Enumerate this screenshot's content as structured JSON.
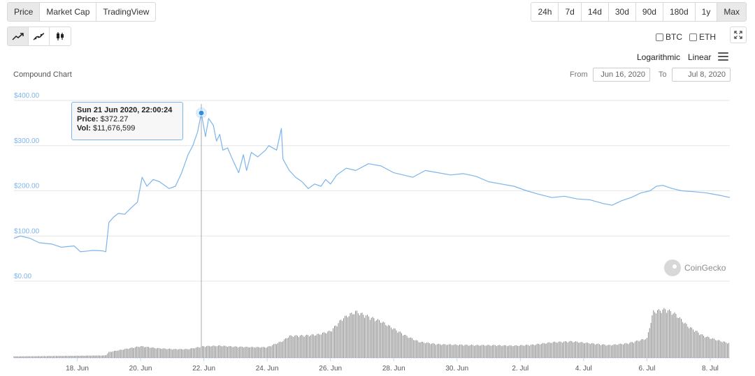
{
  "tabs": [
    {
      "label": "Price",
      "active": true
    },
    {
      "label": "Market Cap",
      "active": false
    },
    {
      "label": "TradingView",
      "active": false
    }
  ],
  "ranges": [
    {
      "label": "24h",
      "active": false
    },
    {
      "label": "7d",
      "active": false
    },
    {
      "label": "14d",
      "active": false
    },
    {
      "label": "30d",
      "active": false
    },
    {
      "label": "90d",
      "active": false
    },
    {
      "label": "180d",
      "active": false
    },
    {
      "label": "1y",
      "active": false
    },
    {
      "label": "Max",
      "active": true
    }
  ],
  "chart_types": [
    "line-chart-icon",
    "smooth-line-chart-icon",
    "candlestick-chart-icon"
  ],
  "compare": {
    "btc": "BTC",
    "eth": "ETH"
  },
  "scale": {
    "logarithmic": "Logarithmic",
    "linear": "Linear"
  },
  "chart_title": "Compound Chart",
  "date_range": {
    "from_label": "From",
    "from": "Jun 16, 2020",
    "to_label": "To",
    "to": "Jul 8, 2020"
  },
  "tooltip": {
    "date": "Sun 21 Jun 2020, 22:00:24",
    "price_label": "Price:",
    "price": "$372.27",
    "vol_label": "Vol:",
    "vol": "$11,676,599"
  },
  "watermark": "CoinGecko",
  "colors": {
    "line": "#7cb5ec",
    "axis_label": "#7cb5ec",
    "volume": "#6b6b6b",
    "grid": "#e6e6e6"
  },
  "chart_data": {
    "type": "line",
    "title": "Compound Chart",
    "y_ticks": [
      "$0.00",
      "$100.00",
      "$200.00",
      "$300.00",
      "$400.00"
    ],
    "ylim": [
      0,
      400
    ],
    "x_ticks": [
      "18. Jun",
      "20. Jun",
      "22. Jun",
      "24. Jun",
      "26. Jun",
      "28. Jun",
      "30. Jun",
      "2. Jul",
      "4. Jul",
      "6. Jul",
      "8. Jul"
    ],
    "x_range_days": [
      16.0,
      38.62
    ],
    "grid": true,
    "highlight": {
      "day": 21.92,
      "price": 372.27
    },
    "series": [
      {
        "values": [
          [
            16.0,
            95
          ],
          [
            16.2,
            100
          ],
          [
            16.5,
            95
          ],
          [
            16.8,
            85
          ],
          [
            17.2,
            82
          ],
          [
            17.5,
            75
          ],
          [
            17.9,
            78
          ],
          [
            18.1,
            65
          ],
          [
            18.5,
            68
          ],
          [
            18.8,
            67
          ],
          [
            18.9,
            65
          ],
          [
            19.0,
            130
          ],
          [
            19.15,
            142
          ],
          [
            19.3,
            150
          ],
          [
            19.5,
            148
          ],
          [
            19.7,
            162
          ],
          [
            19.9,
            175
          ],
          [
            20.05,
            230
          ],
          [
            20.2,
            210
          ],
          [
            20.4,
            225
          ],
          [
            20.6,
            220
          ],
          [
            20.9,
            205
          ],
          [
            21.1,
            210
          ],
          [
            21.3,
            240
          ],
          [
            21.5,
            280
          ],
          [
            21.65,
            300
          ],
          [
            21.8,
            330
          ],
          [
            21.92,
            372
          ],
          [
            22.05,
            320
          ],
          [
            22.15,
            360
          ],
          [
            22.3,
            345
          ],
          [
            22.4,
            310
          ],
          [
            22.5,
            325
          ],
          [
            22.6,
            290
          ],
          [
            22.75,
            295
          ],
          [
            22.9,
            270
          ],
          [
            23.1,
            240
          ],
          [
            23.25,
            280
          ],
          [
            23.35,
            245
          ],
          [
            23.5,
            285
          ],
          [
            23.7,
            275
          ],
          [
            23.95,
            290
          ],
          [
            24.05,
            300
          ],
          [
            24.3,
            290
          ],
          [
            24.45,
            338
          ],
          [
            24.5,
            270
          ],
          [
            24.7,
            245
          ],
          [
            24.9,
            230
          ],
          [
            25.1,
            220
          ],
          [
            25.3,
            205
          ],
          [
            25.5,
            215
          ],
          [
            25.7,
            210
          ],
          [
            25.85,
            225
          ],
          [
            26.0,
            215
          ],
          [
            26.2,
            235
          ],
          [
            26.5,
            250
          ],
          [
            26.8,
            245
          ],
          [
            27.2,
            260
          ],
          [
            27.6,
            255
          ],
          [
            28.0,
            240
          ],
          [
            28.3,
            235
          ],
          [
            28.6,
            230
          ],
          [
            29.0,
            245
          ],
          [
            29.4,
            240
          ],
          [
            29.8,
            235
          ],
          [
            30.2,
            238
          ],
          [
            30.6,
            232
          ],
          [
            31.0,
            220
          ],
          [
            31.4,
            215
          ],
          [
            31.8,
            210
          ],
          [
            32.2,
            200
          ],
          [
            32.6,
            192
          ],
          [
            33.0,
            185
          ],
          [
            33.4,
            188
          ],
          [
            33.8,
            182
          ],
          [
            34.2,
            180
          ],
          [
            34.6,
            172
          ],
          [
            34.9,
            168
          ],
          [
            35.2,
            178
          ],
          [
            35.5,
            185
          ],
          [
            35.8,
            195
          ],
          [
            36.1,
            200
          ],
          [
            36.3,
            210
          ],
          [
            36.5,
            212
          ],
          [
            36.8,
            205
          ],
          [
            37.1,
            200
          ],
          [
            37.5,
            198
          ],
          [
            37.9,
            195
          ],
          [
            38.3,
            190
          ],
          [
            38.62,
            185
          ]
        ]
      }
    ],
    "volume_series": [
      [
        16.0,
        0.03
      ],
      [
        18.9,
        0.05
      ],
      [
        19.0,
        0.12
      ],
      [
        19.5,
        0.18
      ],
      [
        20.0,
        0.24
      ],
      [
        20.5,
        0.2
      ],
      [
        21.0,
        0.18
      ],
      [
        21.5,
        0.18
      ],
      [
        22.0,
        0.24
      ],
      [
        22.5,
        0.25
      ],
      [
        23.0,
        0.23
      ],
      [
        23.5,
        0.22
      ],
      [
        24.0,
        0.22
      ],
      [
        24.5,
        0.35
      ],
      [
        24.7,
        0.45
      ],
      [
        25.2,
        0.46
      ],
      [
        25.6,
        0.48
      ],
      [
        26.0,
        0.55
      ],
      [
        26.4,
        0.82
      ],
      [
        26.8,
        0.95
      ],
      [
        27.2,
        0.85
      ],
      [
        27.6,
        0.75
      ],
      [
        28.0,
        0.6
      ],
      [
        28.4,
        0.45
      ],
      [
        28.8,
        0.33
      ],
      [
        29.4,
        0.28
      ],
      [
        30.0,
        0.27
      ],
      [
        30.6,
        0.26
      ],
      [
        31.2,
        0.26
      ],
      [
        31.8,
        0.25
      ],
      [
        32.4,
        0.27
      ],
      [
        33.0,
        0.32
      ],
      [
        33.6,
        0.34
      ],
      [
        34.2,
        0.3
      ],
      [
        34.8,
        0.26
      ],
      [
        35.4,
        0.3
      ],
      [
        36.0,
        0.4
      ],
      [
        36.2,
        0.95
      ],
      [
        36.6,
        1.0
      ],
      [
        36.9,
        0.9
      ],
      [
        37.3,
        0.65
      ],
      [
        37.8,
        0.45
      ],
      [
        38.3,
        0.35
      ],
      [
        38.62,
        0.3
      ]
    ]
  }
}
